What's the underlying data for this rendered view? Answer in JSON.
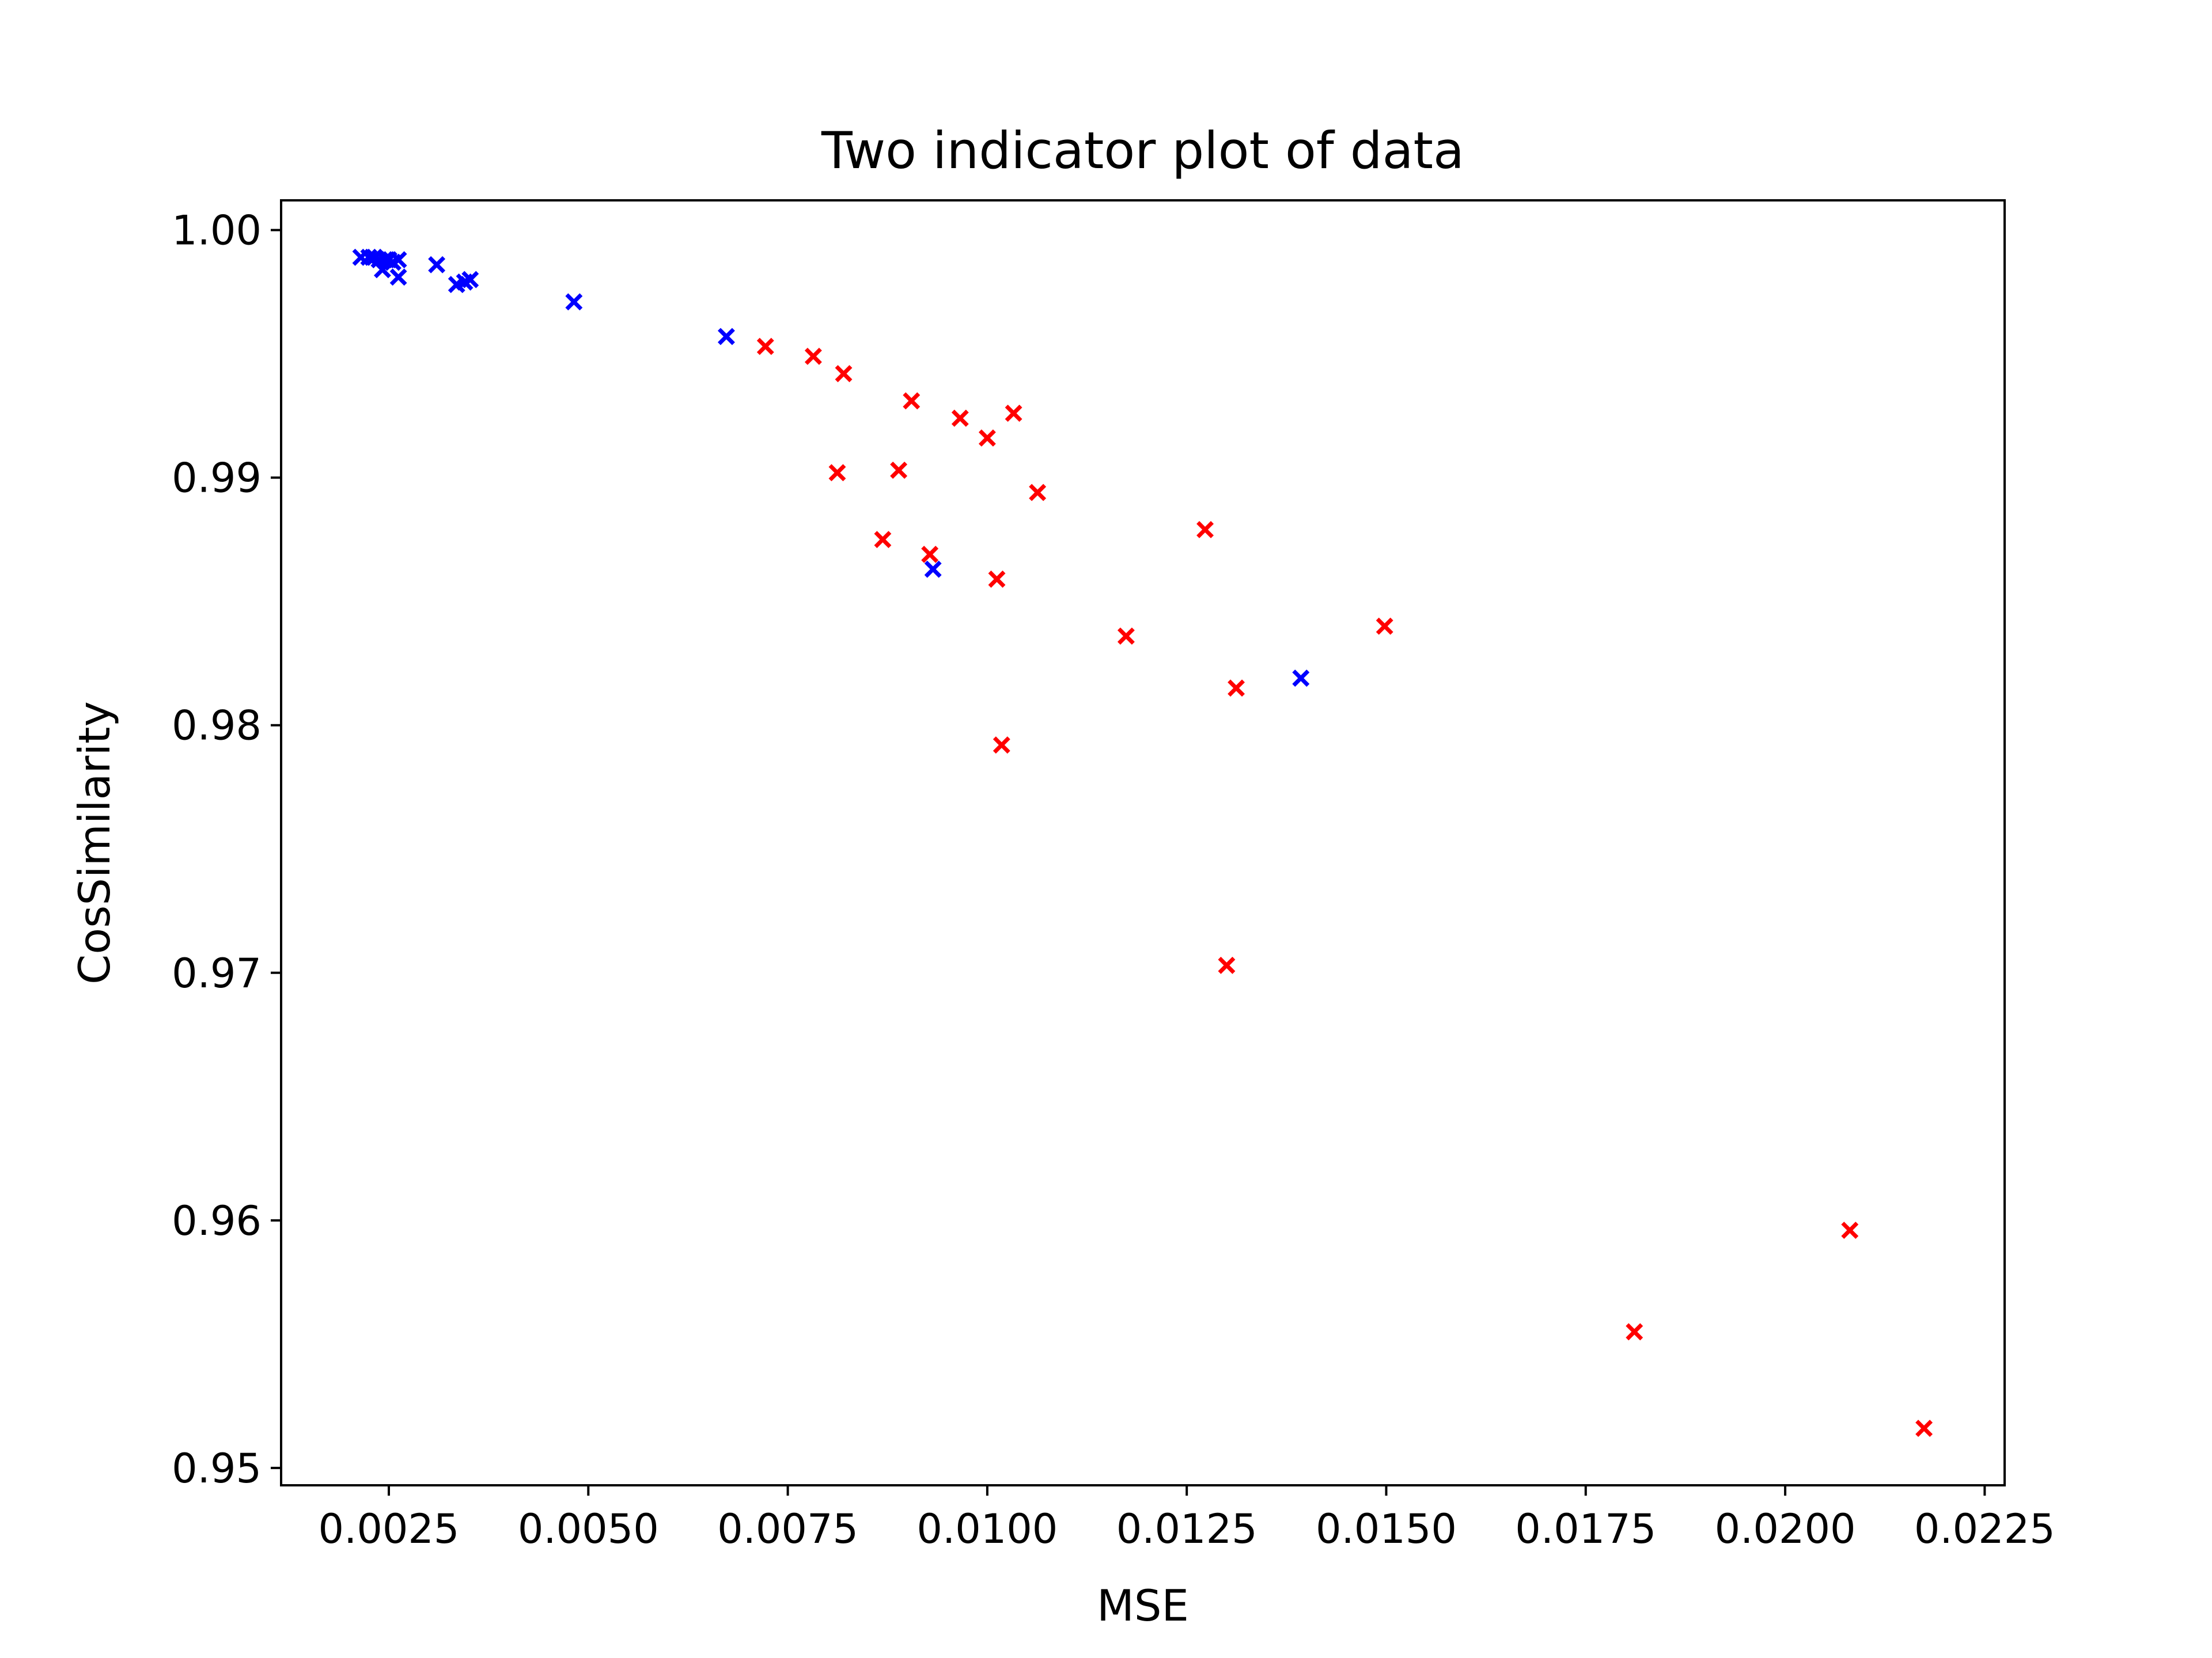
{
  "chart_data": {
    "type": "scatter",
    "title": "Two indicator plot of data",
    "xlabel": "MSE",
    "ylabel": "CosSimilarity",
    "xlim": [
      0.00115,
      0.02275
    ],
    "ylim": [
      0.9493,
      1.0012
    ],
    "grid": false,
    "marker": "x",
    "x_ticks": [
      0.0025,
      0.005,
      0.0075,
      0.01,
      0.0125,
      0.015,
      0.0175,
      0.02,
      0.0225
    ],
    "x_tick_labels": [
      "0.0025",
      "0.0050",
      "0.0075",
      "0.0100",
      "0.0125",
      "0.0150",
      "0.0175",
      "0.0200",
      "0.0225"
    ],
    "y_ticks": [
      0.95,
      0.96,
      0.97,
      0.98,
      0.99,
      1.0
    ],
    "y_tick_labels": [
      "0.95",
      "0.96",
      "0.97",
      "0.98",
      "0.99",
      "1.00"
    ],
    "series": [
      {
        "color": "#0000ff",
        "points": [
          [
            0.00215,
            0.9989
          ],
          [
            0.00225,
            0.9989
          ],
          [
            0.00232,
            0.9989
          ],
          [
            0.00238,
            0.9988
          ],
          [
            0.00245,
            0.9988
          ],
          [
            0.0025,
            0.9988
          ],
          [
            0.00255,
            0.9987
          ],
          [
            0.00262,
            0.9988
          ],
          [
            0.00242,
            0.9984
          ],
          [
            0.00262,
            0.9981
          ],
          [
            0.0031,
            0.9986
          ],
          [
            0.00335,
            0.9978
          ],
          [
            0.00345,
            0.9979
          ],
          [
            0.00352,
            0.998
          ],
          [
            0.00482,
            0.9971
          ],
          [
            0.00673,
            0.9957
          ],
          [
            0.00932,
            0.9863
          ],
          [
            0.01393,
            0.9819
          ]
        ]
      },
      {
        "color": "#ff0000",
        "points": [
          [
            0.00722,
            0.9953
          ],
          [
            0.00782,
            0.9949
          ],
          [
            0.0082,
            0.9942
          ],
          [
            0.00905,
            0.9931
          ],
          [
            0.00966,
            0.9924
          ],
          [
            0.01033,
            0.9926
          ],
          [
            0.01,
            0.9916
          ],
          [
            0.00812,
            0.9902
          ],
          [
            0.00889,
            0.9903
          ],
          [
            0.01063,
            0.9894
          ],
          [
            0.00869,
            0.9875
          ],
          [
            0.00928,
            0.9869
          ],
          [
            0.01273,
            0.9879
          ],
          [
            0.01012,
            0.9859
          ],
          [
            0.01174,
            0.9836
          ],
          [
            0.01498,
            0.984
          ],
          [
            0.01312,
            0.9815
          ],
          [
            0.01018,
            0.9792
          ],
          [
            0.013,
            0.9703
          ],
          [
            0.01811,
            0.9555
          ],
          [
            0.02081,
            0.9596
          ],
          [
            0.02174,
            0.9516
          ]
        ]
      }
    ]
  }
}
